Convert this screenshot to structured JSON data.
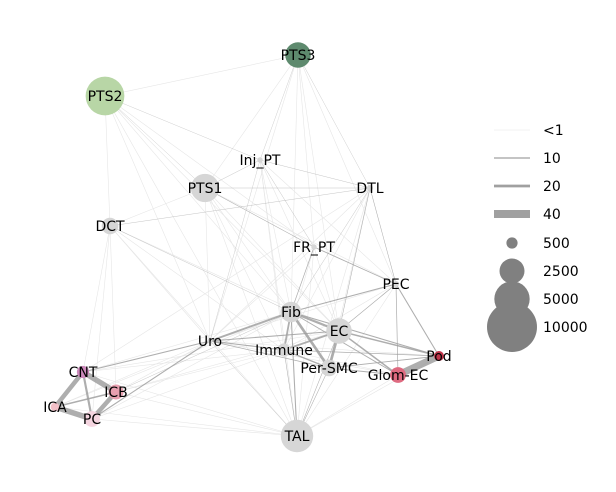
{
  "nodes": [
    {
      "id": "PTS3",
      "label": "PTS3",
      "color": "#5e8a6e",
      "size": 2600
    },
    {
      "id": "PTS2",
      "label": "PTS2",
      "color": "#b8d6a6",
      "size": 6000
    },
    {
      "id": "Inj_PT",
      "label": "Inj_PT",
      "color": "#d6d6d6",
      "size": 120
    },
    {
      "id": "DTL",
      "label": "DTL",
      "color": "#d6d6d6",
      "size": 150
    },
    {
      "id": "PTS1",
      "label": "PTS1",
      "color": "#d6d6d6",
      "size": 3200
    },
    {
      "id": "DCT",
      "label": "DCT",
      "color": "#d6d6d6",
      "size": 1100
    },
    {
      "id": "FR_PT",
      "label": "FR_PT",
      "color": "#d6d6d6",
      "size": 120
    },
    {
      "id": "PEC",
      "label": "PEC",
      "color": "#d6d6d6",
      "size": 150
    },
    {
      "id": "Fib",
      "label": "Fib",
      "color": "#d6d6d6",
      "size": 1700
    },
    {
      "id": "EC",
      "label": "EC",
      "color": "#d6d6d6",
      "size": 2600
    },
    {
      "id": "Uro",
      "label": "Uro",
      "color": "#d6d6d6",
      "size": 120
    },
    {
      "id": "Immune",
      "label": "Immune",
      "color": "#d6d6d6",
      "size": 700
    },
    {
      "id": "Pod",
      "label": "Pod",
      "color": "#c0354a",
      "size": 400
    },
    {
      "id": "Per-SMC",
      "label": "Per-SMC",
      "color": "#d6d6d6",
      "size": 1100
    },
    {
      "id": "Glom-EC",
      "label": "Glom-EC",
      "color": "#de6a80",
      "size": 1000
    },
    {
      "id": "CNT",
      "label": "CNT",
      "color": "#cc88bb",
      "size": 600
    },
    {
      "id": "ICB",
      "label": "ICB",
      "color": "#e8a0b0",
      "size": 900
    },
    {
      "id": "ICA",
      "label": "ICA",
      "color": "#f2c0c8",
      "size": 300
    },
    {
      "id": "PC",
      "label": "PC",
      "color": "#f5d5e0",
      "size": 1000
    },
    {
      "id": "TAL",
      "label": "TAL",
      "color": "#d6d6d6",
      "size": 4200
    }
  ],
  "edges": [
    {
      "source": "CNT",
      "target": "ICB",
      "weight": 30
    },
    {
      "source": "CNT",
      "target": "ICA",
      "weight": 25
    },
    {
      "source": "ICA",
      "target": "PC",
      "weight": 30
    },
    {
      "source": "ICB",
      "target": "PC",
      "weight": 25
    },
    {
      "source": "CNT",
      "target": "PC",
      "weight": 12
    },
    {
      "source": "ICA",
      "target": "ICB",
      "weight": 8
    },
    {
      "source": "Glom-EC",
      "target": "Pod",
      "weight": 40
    },
    {
      "source": "EC",
      "target": "Pod",
      "weight": 8
    },
    {
      "source": "EC",
      "target": "Glom-EC",
      "weight": 8
    },
    {
      "source": "Fib",
      "target": "Per-SMC",
      "weight": 15
    },
    {
      "source": "EC",
      "target": "Per-SMC",
      "weight": 15
    },
    {
      "source": "Fib",
      "target": "EC",
      "weight": 12
    },
    {
      "source": "Fib",
      "target": "Uro",
      "weight": 10
    },
    {
      "source": "Fib",
      "target": "Immune",
      "weight": 10
    },
    {
      "source": "Immune",
      "target": "EC",
      "weight": 10
    },
    {
      "source": "Immune",
      "target": "Per-SMC",
      "weight": 8
    },
    {
      "source": "Fib",
      "target": "TAL",
      "weight": 6
    },
    {
      "source": "Fib",
      "target": "PEC",
      "weight": 6
    },
    {
      "source": "Fib",
      "target": "Pod",
      "weight": 6
    },
    {
      "source": "Fib",
      "target": "Glom-EC",
      "weight": 5
    },
    {
      "source": "PEC",
      "target": "Pod",
      "weight": 6
    },
    {
      "source": "PEC",
      "target": "EC",
      "weight": 4
    },
    {
      "source": "PEC",
      "target": "Glom-EC",
      "weight": 4
    },
    {
      "source": "FR_PT",
      "target": "PEC",
      "weight": 5
    },
    {
      "source": "FR_PT",
      "target": "Fib",
      "weight": 4
    },
    {
      "source": "DTL",
      "target": "PEC",
      "weight": 3
    },
    {
      "source": "DTL",
      "target": "EC",
      "weight": 3
    },
    {
      "source": "Uro",
      "target": "CNT",
      "weight": 6
    },
    {
      "source": "Uro",
      "target": "PC",
      "weight": 6
    },
    {
      "source": "Uro",
      "target": "Immune",
      "weight": 6
    },
    {
      "source": "Uro",
      "target": "EC",
      "weight": 6
    },
    {
      "source": "Uro",
      "target": "Per-SMC",
      "weight": 4
    },
    {
      "source": "Per-SMC",
      "target": "Pod",
      "weight": 5
    },
    {
      "source": "Per-SMC",
      "target": "Glom-EC",
      "weight": 5
    },
    {
      "source": "Immune",
      "target": "Pod",
      "weight": 4
    },
    {
      "source": "TAL",
      "target": "Per-SMC",
      "weight": 3
    },
    {
      "source": "TAL",
      "target": "EC",
      "weight": 3
    },
    {
      "source": "TAL",
      "target": "Immune",
      "weight": 3
    },
    {
      "source": "PTS1",
      "target": "FR_PT",
      "weight": 3
    },
    {
      "source": "PTS1",
      "target": "DTL",
      "weight": 2
    },
    {
      "source": "PTS1",
      "target": "Inj_PT",
      "weight": 2
    },
    {
      "source": "Inj_PT",
      "target": "FR_PT",
      "weight": 2
    },
    {
      "source": "Inj_PT",
      "target": "DTL",
      "weight": 2
    },
    {
      "source": "DCT",
      "target": "DTL",
      "weight": 2
    },
    {
      "source": "DCT",
      "target": "Fib",
      "weight": 2
    },
    {
      "source": "PTS3",
      "target": "Inj_PT",
      "weight": 1.5
    },
    {
      "source": "PTS3",
      "target": "DTL",
      "weight": 1.5
    },
    {
      "source": "PTS2",
      "target": "Inj_PT",
      "weight": 1.5
    },
    {
      "source": "PTS2",
      "target": "PTS1",
      "weight": 1.5
    },
    {
      "source": "Uro",
      "target": "TAL",
      "weight": 2
    },
    {
      "source": "DTL",
      "target": "Fib",
      "weight": 2
    },
    {
      "source": "Inj_PT",
      "target": "Uro",
      "weight": 1.5
    },
    {
      "source": "ICB",
      "target": "Fib",
      "weight": 2
    }
  ],
  "faint_edges": [
    [
      "PTS2",
      "DCT"
    ],
    [
      "PTS2",
      "PTS3"
    ],
    [
      "PTS2",
      "FR_PT"
    ],
    [
      "PTS3",
      "PTS1"
    ],
    [
      "PTS3",
      "FR_PT"
    ],
    [
      "PTS1",
      "DCT"
    ],
    [
      "PTS1",
      "Fib"
    ],
    [
      "PTS1",
      "Uro"
    ],
    [
      "PTS1",
      "PEC"
    ],
    [
      "PTS1",
      "EC"
    ],
    [
      "PTS1",
      "TAL"
    ],
    [
      "DCT",
      "Uro"
    ],
    [
      "DCT",
      "CNT"
    ],
    [
      "DCT",
      "PC"
    ],
    [
      "DCT",
      "ICB"
    ],
    [
      "DCT",
      "Immune"
    ],
    [
      "DCT",
      "EC"
    ],
    [
      "DCT",
      "TAL"
    ],
    [
      "Inj_PT",
      "Fib"
    ],
    [
      "Inj_PT",
      "EC"
    ],
    [
      "Inj_PT",
      "TAL"
    ],
    [
      "Inj_PT",
      "Immune"
    ],
    [
      "Inj_PT",
      "PEC"
    ],
    [
      "DTL",
      "Uro"
    ],
    [
      "DTL",
      "Immune"
    ],
    [
      "DTL",
      "TAL"
    ],
    [
      "DTL",
      "Per-SMC"
    ],
    [
      "DTL",
      "CNT"
    ],
    [
      "FR_PT",
      "Uro"
    ],
    [
      "FR_PT",
      "EC"
    ],
    [
      "FR_PT",
      "TAL"
    ],
    [
      "FR_PT",
      "Immune"
    ],
    [
      "Uro",
      "ICA"
    ],
    [
      "Uro",
      "ICB"
    ],
    [
      "Uro",
      "Glom-EC"
    ],
    [
      "Uro",
      "Pod"
    ],
    [
      "Uro",
      "PEC"
    ],
    [
      "CNT",
      "Fib"
    ],
    [
      "CNT",
      "Immune"
    ],
    [
      "CNT",
      "TAL"
    ],
    [
      "CNT",
      "EC"
    ],
    [
      "ICB",
      "TAL"
    ],
    [
      "ICB",
      "Immune"
    ],
    [
      "ICB",
      "EC"
    ],
    [
      "PC",
      "TAL"
    ],
    [
      "PC",
      "Fib"
    ],
    [
      "PC",
      "Immune"
    ],
    [
      "ICA",
      "Fib"
    ],
    [
      "ICA",
      "TAL"
    ],
    [
      "TAL",
      "Glom-EC"
    ],
    [
      "TAL",
      "Pod"
    ],
    [
      "TAL",
      "PEC"
    ],
    [
      "Immune",
      "Glom-EC"
    ],
    [
      "Immune",
      "PEC"
    ],
    [
      "EC",
      "PTS2"
    ],
    [
      "Fib",
      "PTS2"
    ],
    [
      "Uro",
      "PTS2"
    ],
    [
      "TAL",
      "PTS2"
    ],
    [
      "Immune",
      "PTS1"
    ],
    [
      "PEC",
      "PTS3"
    ],
    [
      "Fib",
      "PTS3"
    ],
    [
      "EC",
      "PTS3"
    ],
    [
      "Uro",
      "PTS3"
    ]
  ],
  "legend": {
    "edge_entries": [
      {
        "label": "<1",
        "width": 0.5
      },
      {
        "label": "10",
        "width": 1.2
      },
      {
        "label": "20",
        "width": 2.8
      },
      {
        "label": "40",
        "width": 8
      }
    ],
    "size_entries": [
      {
        "label": "500",
        "size": 500
      },
      {
        "label": "2500",
        "size": 2500
      },
      {
        "label": "5000",
        "size": 5000
      },
      {
        "label": "10000",
        "size": 10000
      }
    ],
    "marker_color": "#808080",
    "line_color": "#a0a0a0"
  },
  "colors": {
    "edge": "#a0a0a0",
    "faint_edge": "#e6e6e6"
  }
}
